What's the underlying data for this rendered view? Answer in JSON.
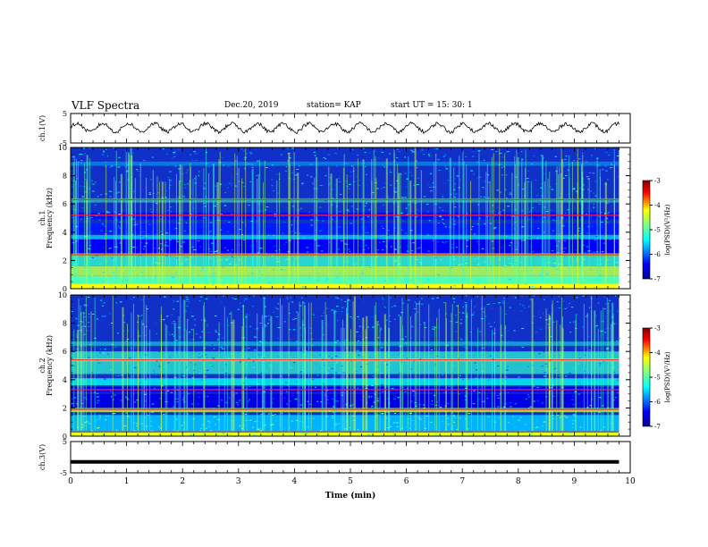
{
  "header": {
    "title": "VLF Spectra",
    "date": "Dec.20, 2019",
    "station": "station= KAP",
    "start_ut": "start  UT =   15: 30: 1"
  },
  "chart_data": [
    {
      "type": "line",
      "panel": "ch1-waveform",
      "ylabel": "ch.1(V)",
      "ylim": [
        -5,
        5
      ],
      "yticks": [
        "5",
        "-5"
      ],
      "xlim": [
        0,
        10
      ],
      "note_values": "oscillating waveform ~±1.5 V, period ~0.45 min",
      "series": [
        {
          "amplitude": 1.4,
          "period_min": 0.46,
          "noise": 0.6,
          "offset": 0.2
        }
      ]
    },
    {
      "type": "heatmap",
      "panel": "ch1-spectrogram",
      "ylabel": "ch.1",
      "ylabel2": "Frequency (kHz)",
      "ylim": [
        0,
        10
      ],
      "yticks": [
        "0",
        "2",
        "4",
        "6",
        "8",
        "10"
      ],
      "xlim": [
        0,
        10
      ],
      "colorbar": {
        "label": "log(PSD)(V²/Hz)",
        "range": [
          -7,
          -3
        ],
        "ticks": [
          "-3",
          "-4",
          "-5",
          "-6",
          "-7"
        ]
      }
    },
    {
      "type": "heatmap",
      "panel": "ch2-spectrogram",
      "ylabel": "ch.2",
      "ylabel2": "Frequency (kHz)",
      "ylim": [
        0,
        10
      ],
      "yticks": [
        "0",
        "2",
        "4",
        "6",
        "8",
        "10"
      ],
      "xlim": [
        0,
        10
      ],
      "colorbar": {
        "label": "log(PSD)(V²/Hz)",
        "range": [
          -7,
          -3
        ],
        "ticks": [
          "-3",
          "-4",
          "-5",
          "-6",
          "-7"
        ]
      }
    },
    {
      "type": "line",
      "panel": "ch3-waveform",
      "ylabel": "ch.3(V)",
      "ylim": [
        -5,
        5
      ],
      "yticks": [
        "5",
        "-5"
      ],
      "xlim": [
        0,
        10
      ],
      "xlabel": "Time  (min)",
      "xticks": [
        "0",
        "1",
        "2",
        "3",
        "4",
        "5",
        "6",
        "7",
        "8",
        "9",
        "10"
      ],
      "series": [
        {
          "constant": -1.5,
          "data_end_min": 9.8
        }
      ]
    }
  ],
  "colors": {
    "frame": "#000000",
    "jet": [
      "#00008f",
      "#0000ff",
      "#00ffff",
      "#7fff7f",
      "#ffff00",
      "#ff0000",
      "#7f0000"
    ]
  }
}
